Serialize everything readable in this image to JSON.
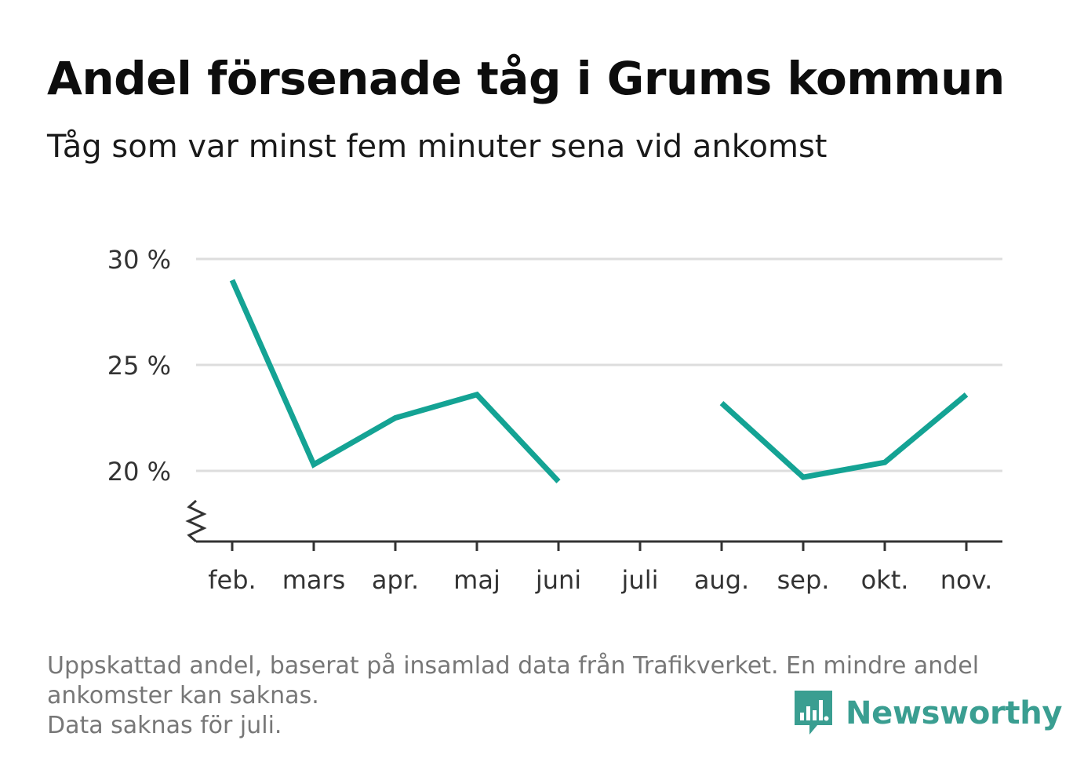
{
  "title": "Andel försenade tåg i Grums kommun",
  "subtitle": "Tåg som var minst fem minuter sena vid ankomst",
  "footnote": {
    "line1": "Uppskattad andel, baserat på insamlad data från Trafikverket. En mindre andel",
    "line2": "ankomster kan saknas.",
    "line3": "Data saknas för juli."
  },
  "brand": {
    "name": "Newsworthy",
    "icon": "newsworthy-logo-icon",
    "color": "#3a9e91"
  },
  "chart_data": {
    "type": "line",
    "title": "Andel försenade tåg i Grums kommun",
    "subtitle": "Tåg som var minst fem minuter sena vid ankomst",
    "xlabel": "",
    "ylabel": "",
    "categories": [
      "feb.",
      "mars",
      "apr.",
      "maj",
      "juni",
      "juli",
      "aug.",
      "sep.",
      "okt.",
      "nov."
    ],
    "series": [
      {
        "values": [
          29.0,
          20.3,
          22.5,
          23.6,
          19.5,
          null,
          23.2,
          19.7,
          20.4,
          23.6
        ],
        "color": "#14a394"
      }
    ],
    "yticks": [
      20,
      25,
      30
    ],
    "ytick_labels": [
      "20 %",
      "25 %",
      "30 %"
    ],
    "ylim": [
      16.7,
      30
    ],
    "grid": true,
    "broken_axis": true,
    "gridline_color": "#dddddd",
    "axis_color": "#333333"
  }
}
